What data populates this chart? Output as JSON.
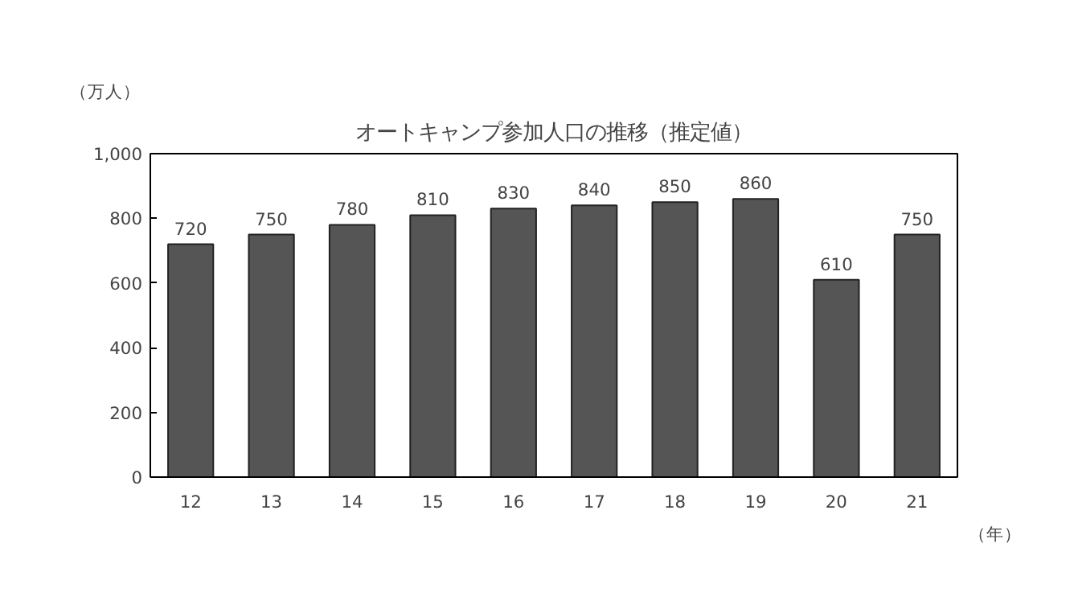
{
  "chart_data": {
    "type": "bar",
    "title": "オートキャンプ参加人口の推移（推定値）",
    "ylabel": "（万人）",
    "xlabel": "（年）",
    "categories": [
      "12",
      "13",
      "14",
      "15",
      "16",
      "17",
      "18",
      "19",
      "20",
      "21"
    ],
    "values": [
      720,
      750,
      780,
      810,
      830,
      840,
      850,
      860,
      610,
      750
    ],
    "color": "#555555",
    "ylim": [
      0,
      1000
    ],
    "yticks": [
      0,
      200,
      400,
      600,
      800,
      {
        "value": 1000,
        "label": "1,000"
      }
    ],
    "grid": false,
    "data_labels": true
  }
}
